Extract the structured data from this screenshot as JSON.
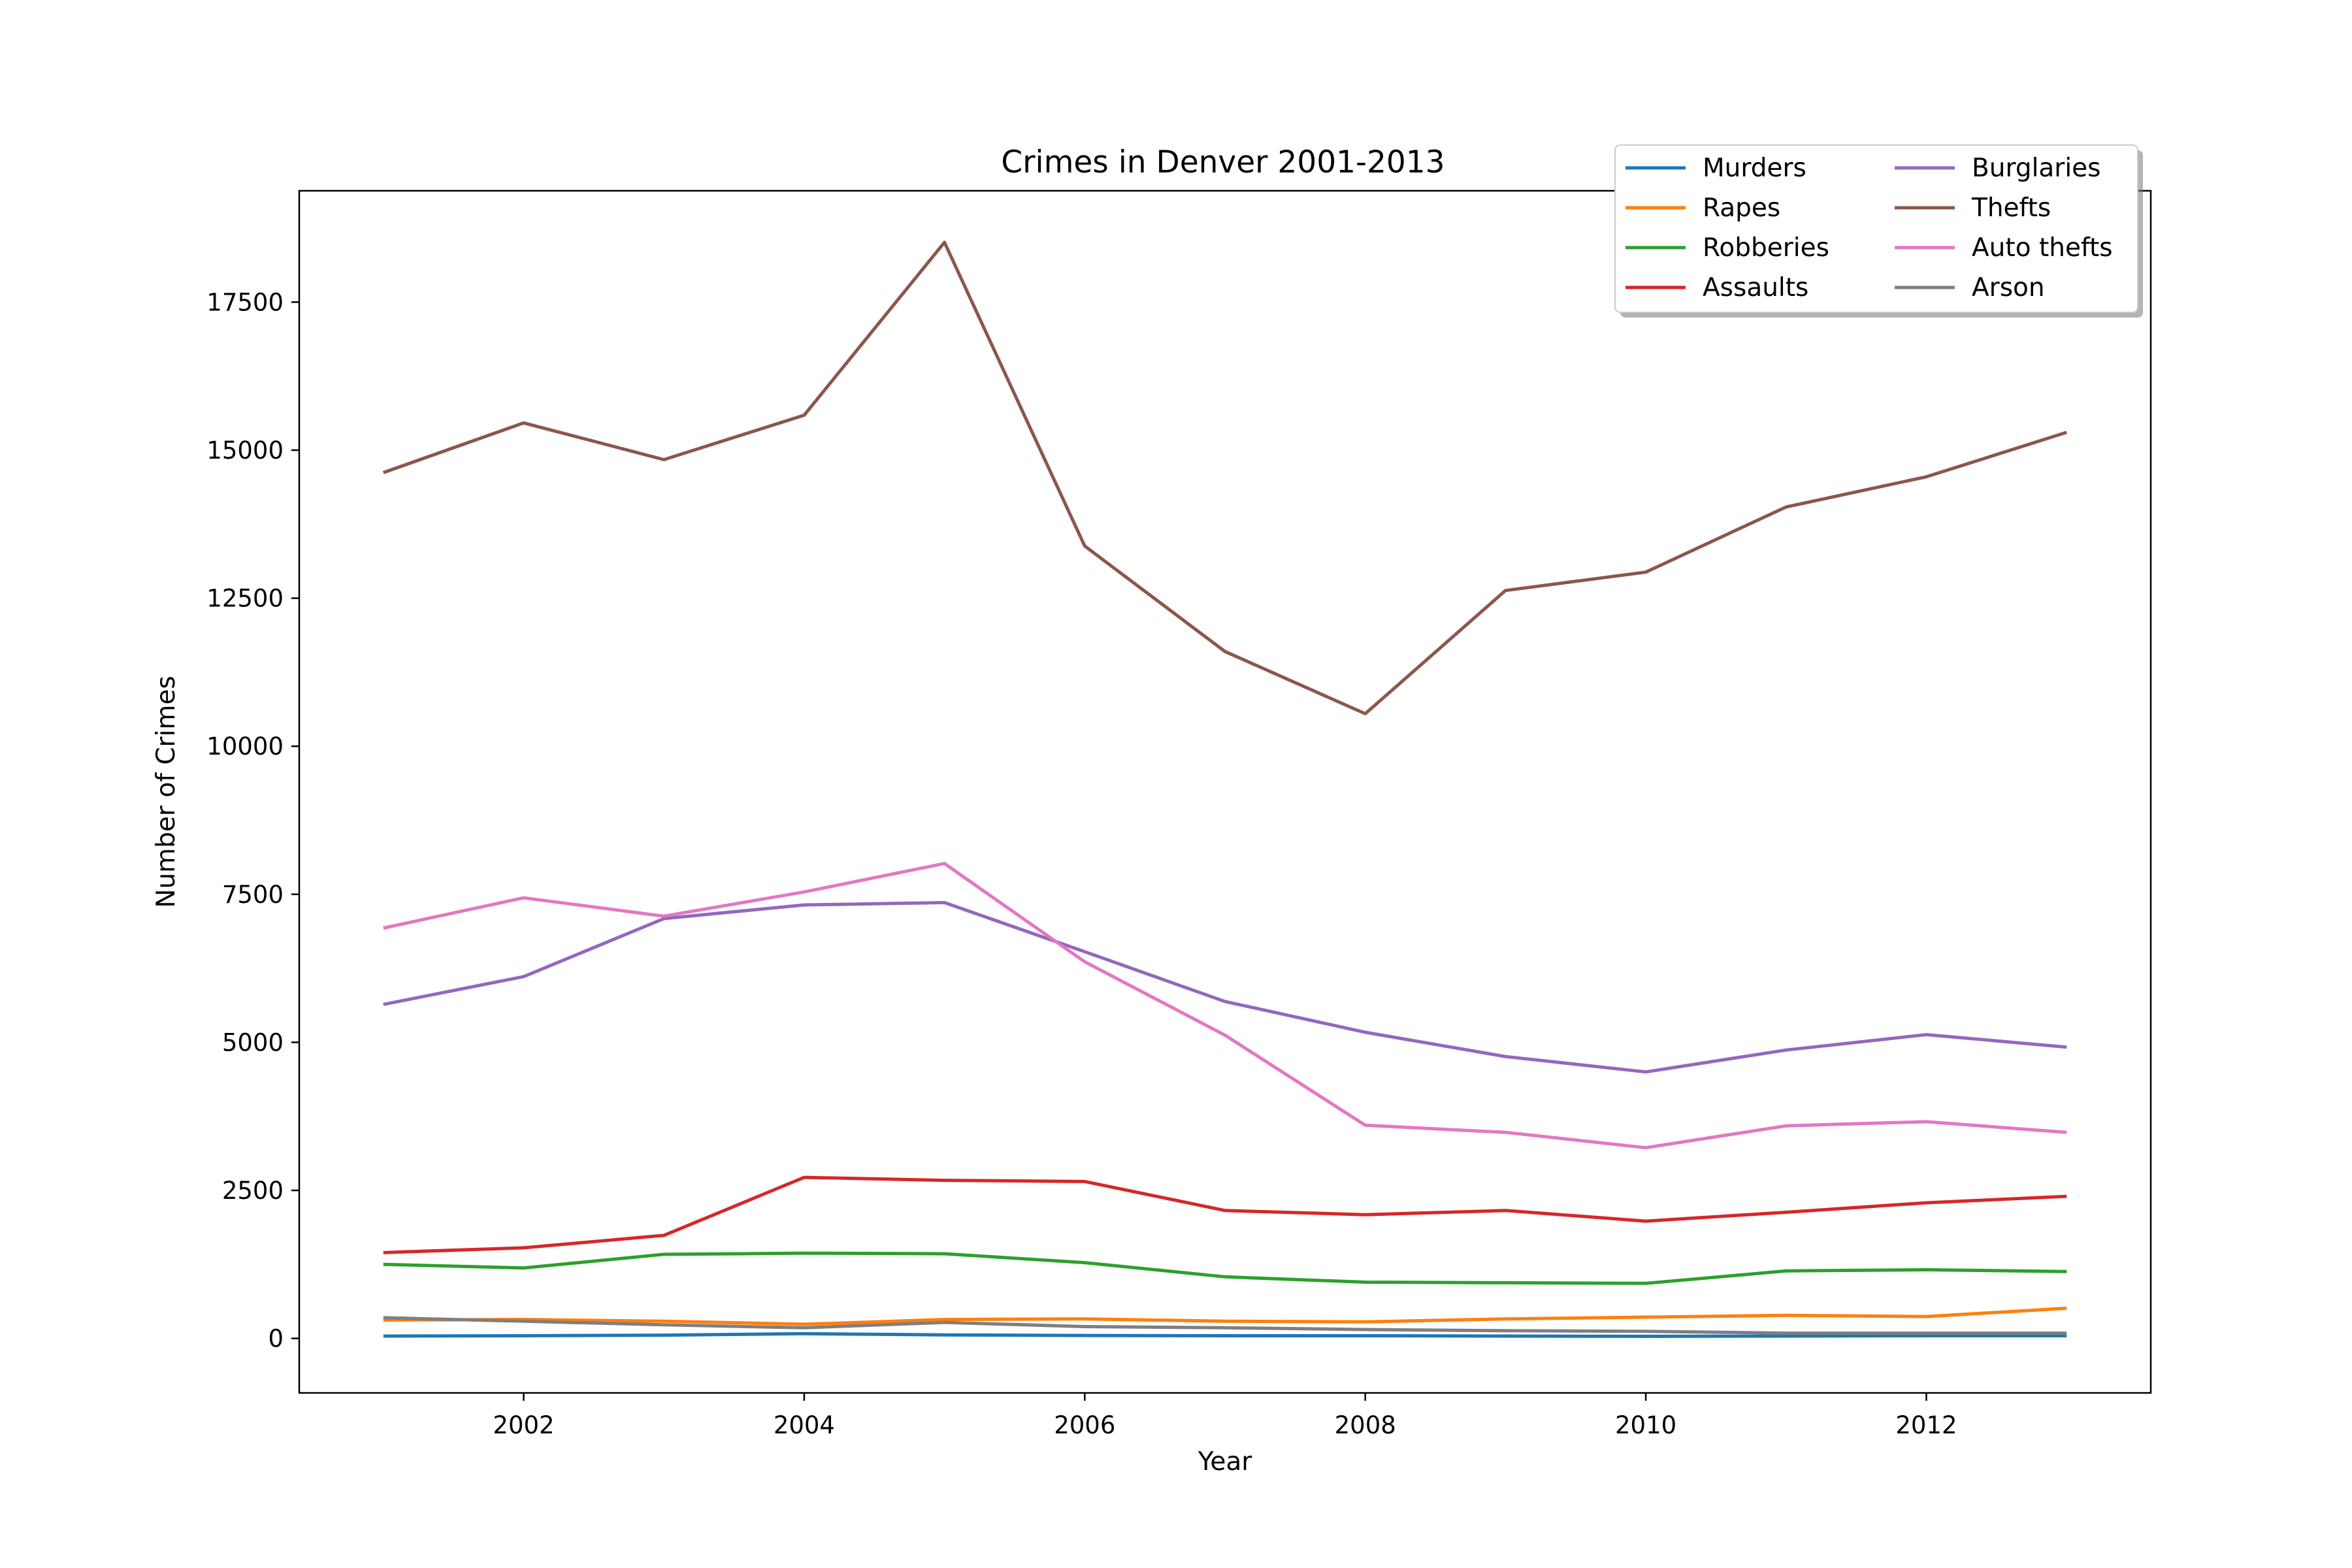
{
  "chart_data": {
    "type": "line",
    "title": "Crimes in Denver 2001-2013",
    "xlabel": "Year",
    "ylabel": "Number of Crimes",
    "x": [
      2001,
      2002,
      2003,
      2004,
      2005,
      2006,
      2007,
      2008,
      2009,
      2010,
      2011,
      2012,
      2013
    ],
    "xlim": [
      2000.4,
      2013.6
    ],
    "ylim": [
      -920,
      19380
    ],
    "xticks": [
      2002,
      2004,
      2006,
      2008,
      2010,
      2012
    ],
    "yticks": [
      0,
      2500,
      5000,
      7500,
      10000,
      12500,
      15000,
      17500
    ],
    "grid": false,
    "legend_position": "top-right",
    "legend_columns": 2,
    "series": [
      {
        "name": "Murders",
        "color": "#1f77b4",
        "values": [
          40,
          45,
          55,
          80,
          60,
          50,
          45,
          45,
          40,
          35,
          40,
          45,
          45
        ]
      },
      {
        "name": "Rapes",
        "color": "#ff7f0e",
        "values": [
          310,
          320,
          290,
          240,
          320,
          330,
          290,
          280,
          330,
          360,
          390,
          370,
          510
        ]
      },
      {
        "name": "Robberies",
        "color": "#2ca02c",
        "values": [
          1250,
          1190,
          1420,
          1440,
          1430,
          1280,
          1040,
          950,
          940,
          930,
          1140,
          1160,
          1130
        ]
      },
      {
        "name": "Assaults",
        "color": "#d62728",
        "values": [
          1450,
          1530,
          1740,
          2720,
          2670,
          2650,
          2160,
          2090,
          2160,
          1980,
          2130,
          2290,
          2400
        ]
      },
      {
        "name": "Burglaries",
        "color": "#9467bd",
        "values": [
          5640,
          6110,
          7090,
          7320,
          7360,
          6530,
          5690,
          5170,
          4760,
          4500,
          4870,
          5130,
          4920
        ]
      },
      {
        "name": "Thefts",
        "color": "#8c564b",
        "values": [
          14620,
          15460,
          14840,
          15590,
          18510,
          13380,
          11600,
          10550,
          12630,
          12940,
          14040,
          14550,
          15300
        ]
      },
      {
        "name": "Auto thefts",
        "color": "#e377c2",
        "values": [
          6930,
          7440,
          7130,
          7540,
          8020,
          6360,
          5120,
          3600,
          3480,
          3220,
          3590,
          3660,
          3480
        ]
      },
      {
        "name": "Arson",
        "color": "#7f7f7f",
        "values": [
          350,
          290,
          230,
          180,
          270,
          200,
          180,
          150,
          130,
          120,
          90,
          90,
          90
        ]
      }
    ]
  }
}
